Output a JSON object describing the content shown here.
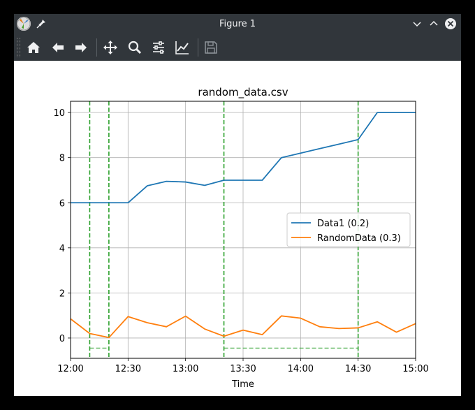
{
  "window": {
    "title": "Figure 1"
  },
  "toolbar": {
    "buttons": [
      {
        "name": "home-icon"
      },
      {
        "name": "back-icon"
      },
      {
        "name": "forward-icon"
      },
      {
        "name": "pan-icon"
      },
      {
        "name": "zoom-icon"
      },
      {
        "name": "configure-subplots-icon"
      },
      {
        "name": "edit-axes-icon"
      },
      {
        "name": "save-icon"
      }
    ]
  },
  "chart_data": {
    "type": "line",
    "title": "random_data.csv",
    "xlabel": "Time",
    "ylabel": "",
    "x_tick_labels": [
      "12:00",
      "12:30",
      "13:00",
      "13:30",
      "14:00",
      "14:30",
      "15:00"
    ],
    "y_ticks": [
      0,
      2,
      4,
      6,
      8,
      10
    ],
    "xlim": [
      "12:00",
      "15:00"
    ],
    "ylim": [
      -0.9,
      10.5
    ],
    "grid": true,
    "legend_position": "center-right",
    "x": [
      "12:00",
      "12:10",
      "12:20",
      "12:30",
      "12:40",
      "12:50",
      "13:00",
      "13:10",
      "13:20",
      "13:30",
      "13:40",
      "13:50",
      "14:00",
      "14:10",
      "14:20",
      "14:30",
      "14:40",
      "14:50",
      "15:00"
    ],
    "series": [
      {
        "name": "Data1 (0.2)",
        "color": "#1f77b4",
        "values": [
          6.0,
          6.0,
          6.0,
          6.0,
          6.75,
          6.95,
          6.92,
          6.77,
          7.0,
          7.0,
          7.0,
          8.0,
          8.2,
          8.4,
          8.6,
          8.8,
          10.0,
          10.0,
          10.0
        ]
      },
      {
        "name": "RandomData (0.3)",
        "color": "#ff7f0e",
        "values": [
          0.85,
          0.2,
          0.02,
          0.95,
          0.68,
          0.5,
          0.97,
          0.4,
          0.08,
          0.35,
          0.15,
          0.98,
          0.88,
          0.5,
          0.42,
          0.45,
          0.72,
          0.26,
          0.64
        ]
      }
    ],
    "vertical_markers": {
      "color": "#2ca02c",
      "x": [
        "12:10",
        "12:20",
        "13:20",
        "14:30"
      ]
    },
    "horizontal_markers": {
      "color": "#2ca02c",
      "y": -0.45,
      "ranges": [
        [
          "12:10",
          "12:20"
        ],
        [
          "13:20",
          "14:30"
        ]
      ]
    }
  }
}
